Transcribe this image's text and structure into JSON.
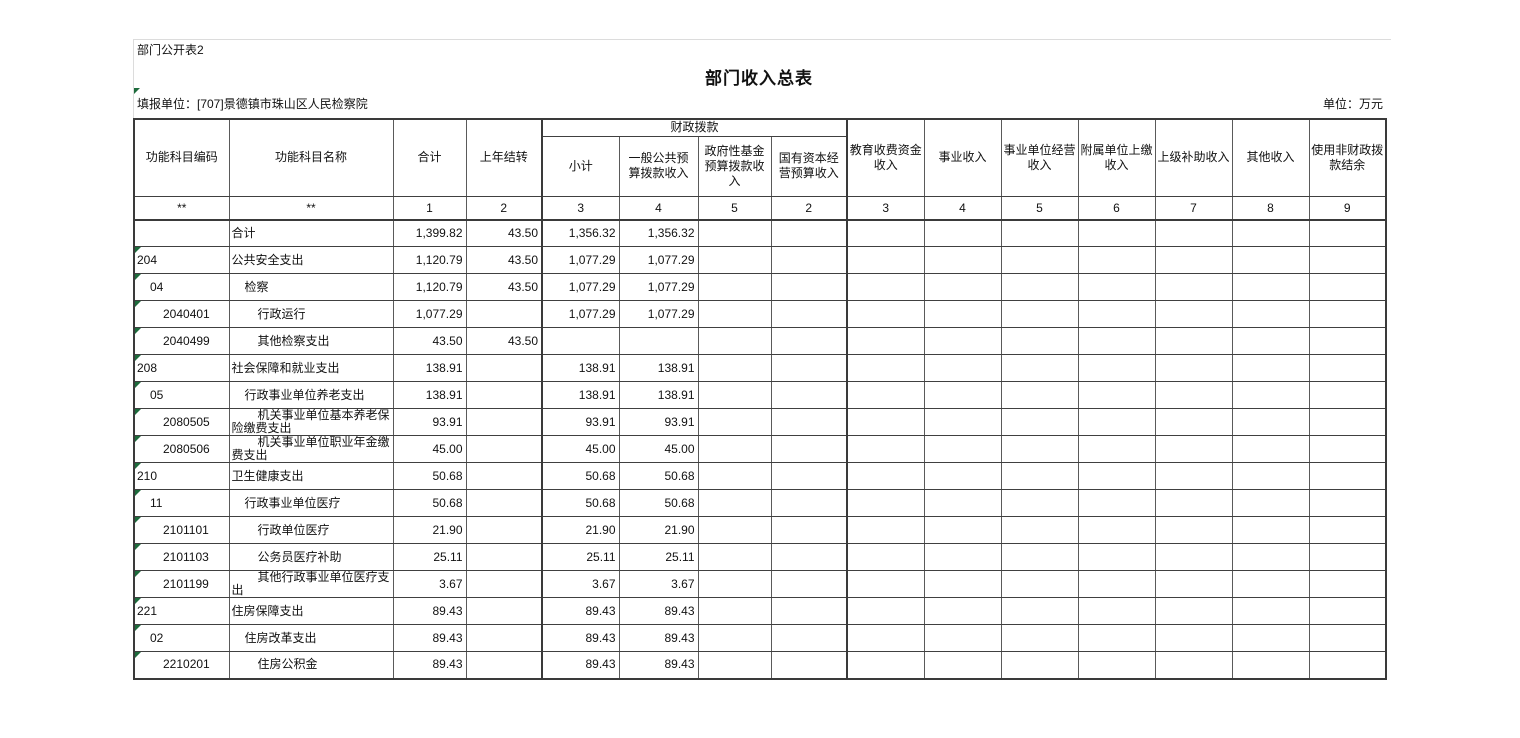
{
  "page": {
    "corner_label": "部门公开表2",
    "title": "部门收入总表",
    "reporting_unit": "填报单位：[707]景德镇市珠山区人民检察院",
    "unit_label": "单位：万元"
  },
  "table": {
    "header": {
      "left_columns": [
        "功能科目编码",
        "功能科目名称",
        "合计",
        "上年结转"
      ],
      "fiscal_group": {
        "label": "财政拨款",
        "children": [
          "小计",
          "一般公共预算拨款收入",
          "政府性基金预算拨款收入",
          "国有资本经营预算收入"
        ]
      },
      "right_columns": [
        "教育收费资金收入",
        "事业收入",
        "事业单位经营收入",
        "附属单位上缴收入",
        "上级补助收入",
        "其他收入",
        "使用非财政拨款结余"
      ],
      "index_row": [
        "**",
        "**",
        "1",
        "2",
        "3",
        "4",
        "5",
        "2",
        "3",
        "4",
        "5",
        "6",
        "7",
        "8",
        "9"
      ]
    },
    "value_keys": [
      "total",
      "carryover",
      "subtotal",
      "general"
    ],
    "empty_value_columns": 9,
    "rows": [
      {
        "code": "",
        "level": 0,
        "name": "合计",
        "total": "1,399.82",
        "carryover": "43.50",
        "subtotal": "1,356.32",
        "general": "1,356.32"
      },
      {
        "code": "204",
        "level": 0,
        "name": "公共安全支出",
        "total": "1,120.79",
        "carryover": "43.50",
        "subtotal": "1,077.29",
        "general": "1,077.29"
      },
      {
        "code": "04",
        "level": 1,
        "name": "检察",
        "total": "1,120.79",
        "carryover": "43.50",
        "subtotal": "1,077.29",
        "general": "1,077.29"
      },
      {
        "code": "2040401",
        "level": 2,
        "name": "行政运行",
        "total": "1,077.29",
        "carryover": "",
        "subtotal": "1,077.29",
        "general": "1,077.29"
      },
      {
        "code": "2040499",
        "level": 2,
        "name": "其他检察支出",
        "total": "43.50",
        "carryover": "43.50",
        "subtotal": "",
        "general": ""
      },
      {
        "code": "208",
        "level": 0,
        "name": "社会保障和就业支出",
        "total": "138.91",
        "carryover": "",
        "subtotal": "138.91",
        "general": "138.91"
      },
      {
        "code": "05",
        "level": 1,
        "name": "行政事业单位养老支出",
        "total": "138.91",
        "carryover": "",
        "subtotal": "138.91",
        "general": "138.91"
      },
      {
        "code": "2080505",
        "level": 2,
        "name": "机关事业单位基本养老保险缴费支出",
        "total": "93.91",
        "carryover": "",
        "subtotal": "93.91",
        "general": "93.91"
      },
      {
        "code": "2080506",
        "level": 2,
        "name": "机关事业单位职业年金缴费支出",
        "total": "45.00",
        "carryover": "",
        "subtotal": "45.00",
        "general": "45.00"
      },
      {
        "code": "210",
        "level": 0,
        "name": "卫生健康支出",
        "total": "50.68",
        "carryover": "",
        "subtotal": "50.68",
        "general": "50.68"
      },
      {
        "code": "11",
        "level": 1,
        "name": "行政事业单位医疗",
        "total": "50.68",
        "carryover": "",
        "subtotal": "50.68",
        "general": "50.68"
      },
      {
        "code": "2101101",
        "level": 2,
        "name": "行政单位医疗",
        "total": "21.90",
        "carryover": "",
        "subtotal": "21.90",
        "general": "21.90"
      },
      {
        "code": "2101103",
        "level": 2,
        "name": "公务员医疗补助",
        "total": "25.11",
        "carryover": "",
        "subtotal": "25.11",
        "general": "25.11"
      },
      {
        "code": "2101199",
        "level": 2,
        "name": "其他行政事业单位医疗支出",
        "total": "3.67",
        "carryover": "",
        "subtotal": "3.67",
        "general": "3.67"
      },
      {
        "code": "221",
        "level": 0,
        "name": "住房保障支出",
        "total": "89.43",
        "carryover": "",
        "subtotal": "89.43",
        "general": "89.43"
      },
      {
        "code": "02",
        "level": 1,
        "name": "住房改革支出",
        "total": "89.43",
        "carryover": "",
        "subtotal": "89.43",
        "general": "89.43"
      },
      {
        "code": "2210201",
        "level": 2,
        "name": "住房公积金",
        "total": "89.43",
        "carryover": "",
        "subtotal": "89.43",
        "general": "89.43"
      }
    ]
  },
  "colors": {
    "grid_dark": "#3a3a3a",
    "grid_line": "#4d4d4d",
    "sheet_gridline": "#dcdcdc",
    "flag_green": "#1d6b3c",
    "background": "#ffffff"
  }
}
